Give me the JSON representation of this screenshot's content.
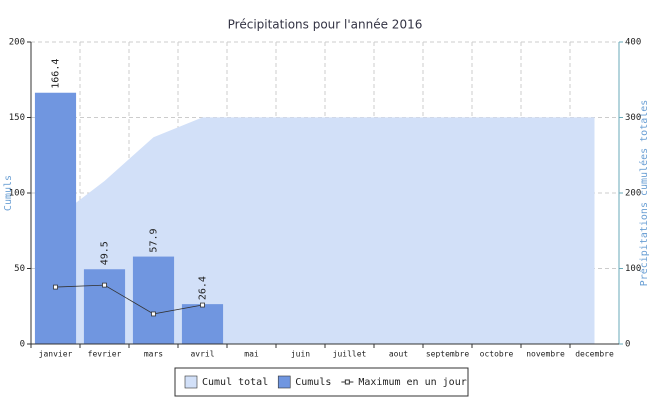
{
  "chart_data": {
    "type": "bar",
    "title": "Précipitations pour l'année 2016",
    "y_label": "Cumuls",
    "y2_label": "Précipitations cumulées totales",
    "categories": [
      "janvier",
      "fevrier",
      "mars",
      "avril",
      "mai",
      "juin",
      "juillet",
      "aout",
      "septembre",
      "octobre",
      "novembre",
      "decembre"
    ],
    "series": [
      {
        "name": "Cumul total",
        "type": "area",
        "axis": "y2",
        "color": "#d2e0f8",
        "values": [
          166.4,
          215.9,
          273.8,
          300.2,
          300.2,
          300.2,
          300.2,
          300.2,
          300.2,
          300.2,
          300.2,
          300.2
        ]
      },
      {
        "name": "Cumuls",
        "type": "bar",
        "color": "#7096e0",
        "values": [
          166.4,
          49.5,
          57.9,
          26.4,
          null,
          null,
          null,
          null,
          null,
          null,
          null,
          null
        ]
      },
      {
        "name": "Maximum en un jour",
        "type": "line",
        "color": "#333333",
        "values": [
          37.7,
          39,
          19.9,
          25.8,
          null,
          null,
          null,
          null,
          null,
          null,
          null,
          null
        ]
      }
    ],
    "ylim": [
      0,
      200
    ],
    "yticks": [
      0,
      50,
      100,
      150,
      200
    ],
    "y2lim": [
      0,
      400
    ],
    "y2ticks": [
      0,
      100,
      200,
      300,
      400
    ],
    "grid": true,
    "legend": "bottom"
  }
}
